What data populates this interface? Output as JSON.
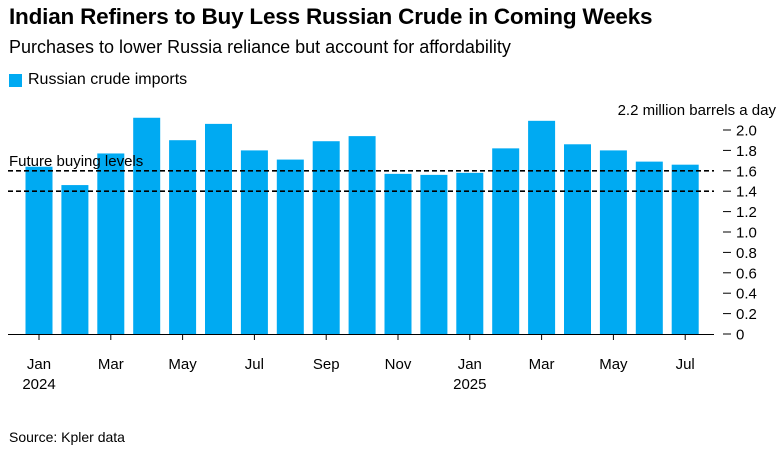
{
  "title": "Indian Refiners to Buy Less Russian Crude in Coming Weeks",
  "subtitle": "Purchases to lower Russia reliance but account for affordability",
  "source": "Source: Kpler data",
  "colors": {
    "bar": "#00aaf2",
    "axis": "#000000",
    "refline": "#000000"
  },
  "chart_data": {
    "type": "bar",
    "legend": [
      "Russian crude imports"
    ],
    "unit_label": "2.2 million barrels a day",
    "ylabel": "million barrels a day",
    "ylim": [
      0,
      2.2
    ],
    "yticks": [
      "0",
      "0.2",
      "0.4",
      "0.6",
      "0.8",
      "1.0",
      "1.2",
      "1.4",
      "1.6",
      "1.8",
      "2.0"
    ],
    "categories": [
      "Jan 2024",
      "Feb 2024",
      "Mar 2024",
      "Apr 2024",
      "May 2024",
      "Jun 2024",
      "Jul 2024",
      "Aug 2024",
      "Sep 2024",
      "Oct 2024",
      "Nov 2024",
      "Dec 2024",
      "Jan 2025",
      "Feb 2025",
      "Mar 2025",
      "Apr 2025",
      "May 2025",
      "Jun 2025",
      "Jul 2025"
    ],
    "values": [
      1.64,
      1.46,
      1.77,
      2.12,
      1.9,
      2.06,
      1.8,
      1.71,
      1.89,
      1.94,
      1.57,
      1.56,
      1.58,
      1.82,
      2.09,
      1.86,
      1.8,
      1.69,
      1.66
    ],
    "xtick_labels": [
      {
        "index": 0,
        "label": "Jan",
        "year": "2024"
      },
      {
        "index": 2,
        "label": "Mar"
      },
      {
        "index": 4,
        "label": "May"
      },
      {
        "index": 6,
        "label": "Jul"
      },
      {
        "index": 8,
        "label": "Sep"
      },
      {
        "index": 10,
        "label": "Nov"
      },
      {
        "index": 12,
        "label": "Jan",
        "year": "2025"
      },
      {
        "index": 14,
        "label": "Mar"
      },
      {
        "index": 16,
        "label": "May"
      },
      {
        "index": 18,
        "label": "Jul"
      }
    ],
    "reference_lines": [
      {
        "label": "Future buying levels",
        "value": 1.6
      },
      {
        "value": 1.4
      }
    ]
  }
}
